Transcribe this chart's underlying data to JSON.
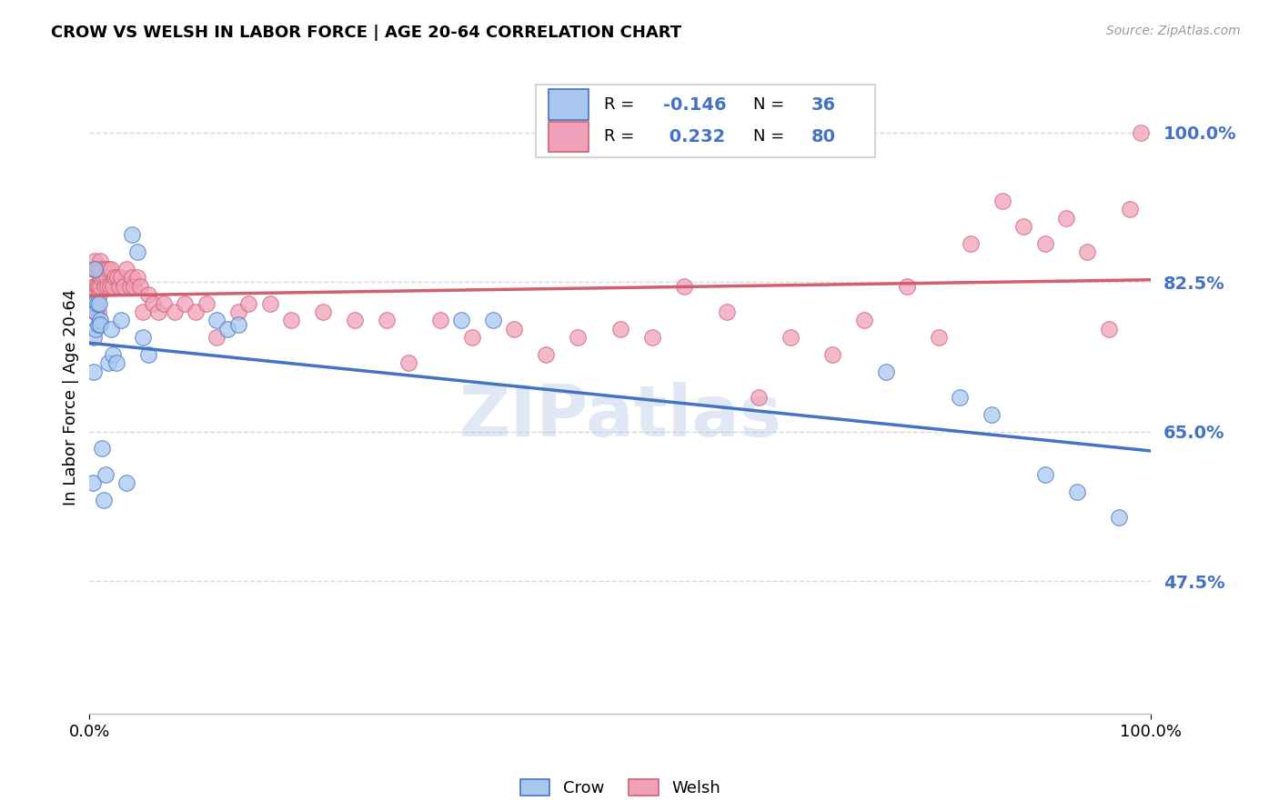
{
  "title": "CROW VS WELSH IN LABOR FORCE | AGE 20-64 CORRELATION CHART",
  "source": "Source: ZipAtlas.com",
  "ylabel": "In Labor Force | Age 20-64",
  "xlim": [
    0.0,
    1.0
  ],
  "ylim": [
    0.32,
    1.06
  ],
  "yticks": [
    0.475,
    0.65,
    0.825,
    1.0
  ],
  "ytick_labels": [
    "47.5%",
    "65.0%",
    "82.5%",
    "100.0%"
  ],
  "xtick_labels": [
    "0.0%",
    "100.0%"
  ],
  "crow_color": "#a8c8f0",
  "welsh_color": "#f0a0b8",
  "crow_line_color": "#4472c4",
  "welsh_line_color": "#d06070",
  "crow_R": -0.146,
  "crow_N": 36,
  "welsh_R": 0.232,
  "welsh_N": 80,
  "crow_x": [
    0.003,
    0.004,
    0.004,
    0.005,
    0.005,
    0.006,
    0.006,
    0.007,
    0.008,
    0.009,
    0.01,
    0.01,
    0.012,
    0.013,
    0.015,
    0.018,
    0.02,
    0.022,
    0.025,
    0.03,
    0.035,
    0.04,
    0.045,
    0.05,
    0.055,
    0.12,
    0.13,
    0.14,
    0.35,
    0.38,
    0.75,
    0.82,
    0.85,
    0.9,
    0.93,
    0.97
  ],
  "crow_y": [
    0.59,
    0.76,
    0.72,
    0.84,
    0.8,
    0.79,
    0.77,
    0.8,
    0.775,
    0.8,
    0.78,
    0.775,
    0.63,
    0.57,
    0.6,
    0.73,
    0.77,
    0.74,
    0.73,
    0.78,
    0.59,
    0.88,
    0.86,
    0.76,
    0.74,
    0.78,
    0.77,
    0.775,
    0.78,
    0.78,
    0.72,
    0.69,
    0.67,
    0.6,
    0.58,
    0.55
  ],
  "welsh_x": [
    0.003,
    0.004,
    0.005,
    0.005,
    0.005,
    0.006,
    0.006,
    0.007,
    0.007,
    0.008,
    0.008,
    0.008,
    0.009,
    0.009,
    0.01,
    0.01,
    0.011,
    0.012,
    0.013,
    0.014,
    0.015,
    0.016,
    0.017,
    0.018,
    0.019,
    0.02,
    0.022,
    0.024,
    0.026,
    0.028,
    0.03,
    0.032,
    0.035,
    0.038,
    0.04,
    0.042,
    0.045,
    0.048,
    0.05,
    0.055,
    0.06,
    0.065,
    0.07,
    0.08,
    0.09,
    0.1,
    0.11,
    0.12,
    0.14,
    0.15,
    0.17,
    0.19,
    0.22,
    0.25,
    0.28,
    0.3,
    0.33,
    0.36,
    0.4,
    0.43,
    0.46,
    0.5,
    0.53,
    0.56,
    0.6,
    0.63,
    0.66,
    0.7,
    0.73,
    0.77,
    0.8,
    0.83,
    0.86,
    0.88,
    0.9,
    0.92,
    0.94,
    0.96,
    0.98,
    0.99
  ],
  "welsh_y": [
    0.84,
    0.82,
    0.85,
    0.82,
    0.79,
    0.84,
    0.81,
    0.84,
    0.82,
    0.84,
    0.82,
    0.79,
    0.84,
    0.81,
    0.85,
    0.82,
    0.83,
    0.84,
    0.83,
    0.82,
    0.84,
    0.83,
    0.82,
    0.84,
    0.82,
    0.84,
    0.82,
    0.83,
    0.83,
    0.82,
    0.83,
    0.82,
    0.84,
    0.82,
    0.83,
    0.82,
    0.83,
    0.82,
    0.79,
    0.81,
    0.8,
    0.79,
    0.8,
    0.79,
    0.8,
    0.79,
    0.8,
    0.76,
    0.79,
    0.8,
    0.8,
    0.78,
    0.79,
    0.78,
    0.78,
    0.73,
    0.78,
    0.76,
    0.77,
    0.74,
    0.76,
    0.77,
    0.76,
    0.82,
    0.79,
    0.69,
    0.76,
    0.74,
    0.78,
    0.82,
    0.76,
    0.87,
    0.92,
    0.89,
    0.87,
    0.9,
    0.86,
    0.77,
    0.91,
    1.0
  ],
  "watermark": "ZIPatlas",
  "background_color": "#ffffff",
  "grid_color": "#d8d8d8"
}
